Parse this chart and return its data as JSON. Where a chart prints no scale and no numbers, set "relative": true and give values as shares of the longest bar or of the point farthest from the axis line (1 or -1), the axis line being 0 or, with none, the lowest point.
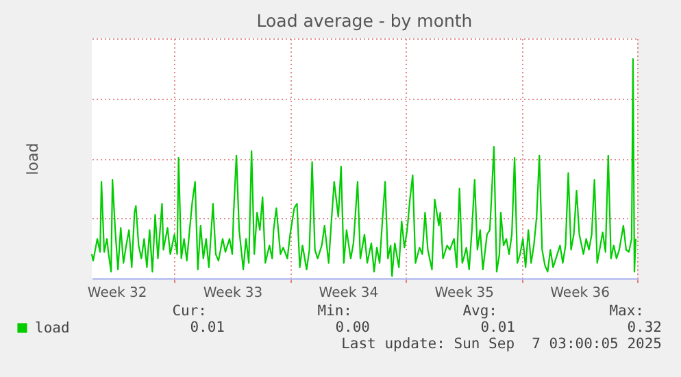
{
  "chart_data": {
    "type": "line",
    "title": "Load average - by month",
    "ylabel": "load",
    "relative": true,
    "grid": true,
    "legend": "bottom",
    "xlim": [
      "2025-08-06T00:00",
      "2025-09-08T00:00"
    ],
    "xticks": [
      {
        "value": "2025-08-07T12:00",
        "label": "Week 32"
      },
      {
        "value": "2025-08-11T00:00",
        "label": null
      },
      {
        "value": "2025-08-14T12:00",
        "label": "Week 33"
      },
      {
        "value": "2025-08-18T00:00",
        "label": null
      },
      {
        "value": "2025-08-21T12:00",
        "label": "Week 34"
      },
      {
        "value": "2025-08-25T00:00",
        "label": null
      },
      {
        "value": "2025-08-28T12:00",
        "label": "Week 35"
      },
      {
        "value": "2025-09-01T00:00",
        "label": null
      },
      {
        "value": "2025-09-04T12:00",
        "label": "Week 36"
      },
      {
        "value": "2025-09-08T00:00",
        "label": null
      }
    ],
    "annotations": [
      "Cur:",
      "Min:",
      "Avg:",
      "Max:",
      "0.01",
      "0.00",
      "0.01",
      "0.32",
      "Last update: Sun Sep  7 03:00:05 2025"
    ],
    "x": [
      "2025-08-06T00:00",
      "2025-08-06T02:00",
      "2025-08-06T08:00",
      "2025-08-06T12:00",
      "2025-08-06T14:00",
      "2025-08-06T18:00",
      "2025-08-06T22:00",
      "2025-08-07T00:00",
      "2025-08-07T04:00",
      "2025-08-07T06:00",
      "2025-08-07T10:00",
      "2025-08-07T14:00",
      "2025-08-07T18:00",
      "2025-08-07T22:00",
      "2025-08-08T02:00",
      "2025-08-08T06:00",
      "2025-08-08T10:00",
      "2025-08-08T14:00",
      "2025-08-08T16:00",
      "2025-08-08T20:00",
      "2025-08-09T00:00",
      "2025-08-09T04:00",
      "2025-08-09T08:00",
      "2025-08-09T12:00",
      "2025-08-09T16:00",
      "2025-08-09T20:00",
      "2025-08-10T00:00",
      "2025-08-10T06:00",
      "2025-08-10T08:00",
      "2025-08-10T14:00",
      "2025-08-10T18:00",
      "2025-08-11T00:00",
      "2025-08-11T04:00",
      "2025-08-11T06:00",
      "2025-08-11T10:00",
      "2025-08-11T14:00",
      "2025-08-11T18:00",
      "2025-08-11T22:00",
      "2025-08-12T02:00",
      "2025-08-12T06:00",
      "2025-08-12T10:00",
      "2025-08-12T14:00",
      "2025-08-12T18:00",
      "2025-08-12T22:00",
      "2025-08-13T02:00",
      "2025-08-13T08:00",
      "2025-08-13T12:00",
      "2025-08-13T16:00",
      "2025-08-13T22:00",
      "2025-08-14T02:00",
      "2025-08-14T08:00",
      "2025-08-14T12:00",
      "2025-08-14T14:00",
      "2025-08-14T18:00",
      "2025-08-14T22:00",
      "2025-08-15T04:00",
      "2025-08-15T08:00",
      "2025-08-15T12:00",
      "2025-08-15T16:00",
      "2025-08-15T20:00",
      "2025-08-16T00:00",
      "2025-08-16T04:00",
      "2025-08-16T08:00",
      "2025-08-16T12:00",
      "2025-08-16T18:00",
      "2025-08-16T22:00",
      "2025-08-17T00:00",
      "2025-08-17T04:00",
      "2025-08-17T10:00",
      "2025-08-17T14:00",
      "2025-08-17T20:00",
      "2025-08-18T00:00",
      "2025-08-18T06:00",
      "2025-08-18T10:00",
      "2025-08-18T14:00",
      "2025-08-18T18:00",
      "2025-08-19T00:00",
      "2025-08-19T04:00",
      "2025-08-19T08:00",
      "2025-08-19T12:00",
      "2025-08-19T16:00",
      "2025-08-19T22:00",
      "2025-08-20T02:00",
      "2025-08-20T08:00",
      "2025-08-20T12:00",
      "2025-08-20T16:00",
      "2025-08-20T22:00",
      "2025-08-21T02:00",
      "2025-08-21T06:00",
      "2025-08-21T10:00",
      "2025-08-21T16:00",
      "2025-08-21T20:00",
      "2025-08-22T02:00",
      "2025-08-22T06:00",
      "2025-08-22T12:00",
      "2025-08-22T16:00",
      "2025-08-22T22:00",
      "2025-08-23T02:00",
      "2025-08-23T06:00",
      "2025-08-23T10:00",
      "2025-08-23T14:00",
      "2025-08-23T18:00",
      "2025-08-23T22:00",
      "2025-08-24T02:00",
      "2025-08-24T04:00",
      "2025-08-24T08:00",
      "2025-08-24T14:00",
      "2025-08-24T18:00",
      "2025-08-24T22:00",
      "2025-08-25T02:00",
      "2025-08-25T06:00",
      "2025-08-25T10:00",
      "2025-08-25T14:00",
      "2025-08-25T20:00",
      "2025-08-26T00:00",
      "2025-08-26T04:00",
      "2025-08-26T08:00",
      "2025-08-26T14:00",
      "2025-08-26T18:00",
      "2025-08-27T00:00",
      "2025-08-27T02:00",
      "2025-08-27T06:00",
      "2025-08-27T12:00",
      "2025-08-27T16:00",
      "2025-08-27T22:00",
      "2025-08-28T02:00",
      "2025-08-28T06:00",
      "2025-08-28T10:00",
      "2025-08-28T12:00",
      "2025-08-28T16:00",
      "2025-08-28T20:00",
      "2025-08-29T00:00",
      "2025-08-29T04:00",
      "2025-08-29T08:00",
      "2025-08-29T12:00",
      "2025-08-29T16:00",
      "2025-08-29T22:00",
      "2025-08-30T02:00",
      "2025-08-30T04:00",
      "2025-08-30T08:00",
      "2025-08-30T12:00",
      "2025-08-30T16:00",
      "2025-08-30T18:00",
      "2025-08-30T22:00",
      "2025-08-31T02:00",
      "2025-08-31T06:00",
      "2025-08-31T10:00",
      "2025-08-31T14:00",
      "2025-08-31T18:00",
      "2025-08-31T22:00",
      "2025-09-01T02:00",
      "2025-09-01T06:00",
      "2025-09-01T10:00",
      "2025-09-01T14:00",
      "2025-09-01T18:00",
      "2025-09-01T22:00",
      "2025-09-02T02:00",
      "2025-09-02T06:00",
      "2025-09-02T10:00",
      "2025-09-02T14:00",
      "2025-09-02T18:00",
      "2025-09-02T22:00",
      "2025-09-03T04:00",
      "2025-09-03T08:00",
      "2025-09-03T12:00",
      "2025-09-03T16:00",
      "2025-09-03T20:00",
      "2025-09-04T00:00",
      "2025-09-04T04:00",
      "2025-09-04T08:00",
      "2025-09-04T12:00",
      "2025-09-04T18:00",
      "2025-09-04T22:00",
      "2025-09-05T02:00",
      "2025-09-05T06:00",
      "2025-09-05T10:00",
      "2025-09-05T14:00",
      "2025-09-05T18:00",
      "2025-09-05T22:00",
      "2025-09-06T02:00",
      "2025-09-06T06:00",
      "2025-09-06T10:00",
      "2025-09-06T14:00",
      "2025-09-06T18:00",
      "2025-09-06T22:00",
      "2025-09-07T04:00",
      "2025-09-07T08:00",
      "2025-09-07T12:00",
      "2025-09-07T16:00",
      "2025-09-07T18:00",
      "2025-09-07T20:00",
      "2025-09-07T22:00"
    ],
    "series": [
      {
        "name": "load",
        "color": "#00cc00",
        "values": [
          0.11,
          0.08,
          0.18,
          0.12,
          0.44,
          0.12,
          0.18,
          0.12,
          0.03,
          0.45,
          0.22,
          0.04,
          0.23,
          0.07,
          0.15,
          0.22,
          0.05,
          0.3,
          0.33,
          0.15,
          0.09,
          0.18,
          0.05,
          0.22,
          0.03,
          0.29,
          0.09,
          0.34,
          0.13,
          0.23,
          0.11,
          0.2,
          0.11,
          0.55,
          0.09,
          0.18,
          0.08,
          0.22,
          0.35,
          0.44,
          0.04,
          0.24,
          0.09,
          0.18,
          0.05,
          0.34,
          0.11,
          0.08,
          0.18,
          0.12,
          0.18,
          0.11,
          0.3,
          0.56,
          0.22,
          0.04,
          0.18,
          0.07,
          0.58,
          0.11,
          0.3,
          0.22,
          0.37,
          0.07,
          0.15,
          0.09,
          0.22,
          0.32,
          0.11,
          0.14,
          0.09,
          0.2,
          0.32,
          0.34,
          0.05,
          0.15,
          0.04,
          0.13,
          0.53,
          0.13,
          0.09,
          0.15,
          0.24,
          0.07,
          0.26,
          0.44,
          0.28,
          0.51,
          0.07,
          0.22,
          0.09,
          0.16,
          0.44,
          0.09,
          0.2,
          0.07,
          0.16,
          0.03,
          0.14,
          0.07,
          0.26,
          0.44,
          0.09,
          0.15,
          0.01,
          0.16,
          0.05,
          0.26,
          0.14,
          0.22,
          0.36,
          0.47,
          0.07,
          0.14,
          0.11,
          0.3,
          0.13,
          0.04,
          0.36,
          0.24,
          0.3,
          0.09,
          0.15,
          0.13,
          0.18,
          0.05,
          0.41,
          0.07,
          0.09,
          0.14,
          0.04,
          0.22,
          0.45,
          0.13,
          0.22,
          0.04,
          0.2,
          0.22,
          0.34,
          0.6,
          0.03,
          0.11,
          0.3,
          0.15,
          0.18,
          0.11,
          0.2,
          0.55,
          0.07,
          0.11,
          0.18,
          0.05,
          0.22,
          0.07,
          0.15,
          0.28,
          0.56,
          0.13,
          0.06,
          0.03,
          0.13,
          0.05,
          0.11,
          0.15,
          0.07,
          0.15,
          0.48,
          0.13,
          0.2,
          0.4,
          0.2,
          0.11,
          0.18,
          0.13,
          0.2,
          0.45,
          0.07,
          0.14,
          0.21,
          0.12,
          0.56,
          0.09,
          0.15,
          0.09,
          0.13,
          0.24,
          0.13,
          0.12,
          0.18,
          1.0,
          0.03,
          0.18
        ]
      }
    ]
  }
}
